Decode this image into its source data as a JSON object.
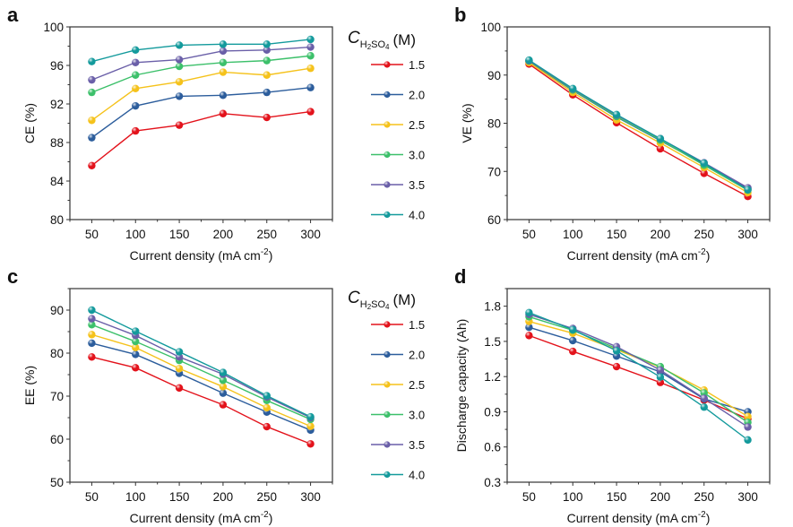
{
  "legend": {
    "title_main": "C",
    "title_sub": "H2SO4",
    "title_unit": "(M)",
    "entries": [
      {
        "label": "1.5",
        "color": "#e3121b"
      },
      {
        "label": "2.0",
        "color": "#2c5d9c"
      },
      {
        "label": "2.5",
        "color": "#f5c21b"
      },
      {
        "label": "3.0",
        "color": "#3cc06a"
      },
      {
        "label": "3.5",
        "color": "#6a5fa8"
      },
      {
        "label": "4.0",
        "color": "#139a9c"
      }
    ]
  },
  "chart_data": [
    {
      "panel": "a",
      "type": "line",
      "xlabel": "Current density (mA cm-2)",
      "xlabel_main": "Current density (mA cm",
      "xlabel_sup": "-2",
      "xlabel_end": ")",
      "ylabel": "CE (%)",
      "x": [
        50,
        100,
        150,
        200,
        250,
        300
      ],
      "xlim": [
        25,
        325
      ],
      "ylim": [
        80,
        100
      ],
      "yticks": [
        80,
        84,
        88,
        92,
        96,
        100
      ],
      "xticks": [
        50,
        100,
        150,
        200,
        250,
        300
      ],
      "series": [
        {
          "name": "1.5",
          "values": [
            85.6,
            89.2,
            89.8,
            91.0,
            90.6,
            91.2
          ]
        },
        {
          "name": "2.0",
          "values": [
            88.5,
            91.8,
            92.8,
            92.9,
            93.2,
            93.7
          ]
        },
        {
          "name": "2.5",
          "values": [
            90.3,
            93.6,
            94.3,
            95.3,
            95.0,
            95.7
          ]
        },
        {
          "name": "3.0",
          "values": [
            93.2,
            95.0,
            95.9,
            96.3,
            96.5,
            97.0
          ]
        },
        {
          "name": "3.5",
          "values": [
            94.5,
            96.3,
            96.6,
            97.5,
            97.6,
            97.9
          ]
        },
        {
          "name": "4.0",
          "values": [
            96.4,
            97.6,
            98.1,
            98.2,
            98.2,
            98.7
          ]
        }
      ]
    },
    {
      "panel": "b",
      "type": "line",
      "xlabel": "Current density (mA cm-2)",
      "xlabel_main": "Current density (mA cm",
      "xlabel_sup": "-2",
      "xlabel_end": ")",
      "ylabel": "VE (%)",
      "x": [
        50,
        100,
        150,
        200,
        250,
        300
      ],
      "xlim": [
        25,
        325
      ],
      "ylim": [
        60,
        100
      ],
      "yticks": [
        60,
        70,
        80,
        90,
        100
      ],
      "xticks": [
        50,
        100,
        150,
        200,
        250,
        300
      ],
      "series": [
        {
          "name": "1.5",
          "values": [
            92.3,
            85.9,
            80.1,
            74.7,
            69.6,
            64.8
          ]
        },
        {
          "name": "2.0",
          "values": [
            92.8,
            86.8,
            81.3,
            76.4,
            71.5,
            66.4
          ]
        },
        {
          "name": "2.5",
          "values": [
            92.6,
            86.4,
            80.7,
            75.9,
            70.8,
            65.6
          ]
        },
        {
          "name": "3.0",
          "values": [
            92.9,
            86.9,
            81.4,
            76.5,
            71.3,
            66.1
          ]
        },
        {
          "name": "3.5",
          "values": [
            93.0,
            87.1,
            81.7,
            76.8,
            71.8,
            66.6
          ]
        },
        {
          "name": "4.0",
          "values": [
            93.1,
            87.2,
            81.8,
            76.8,
            71.7,
            66.2
          ]
        }
      ]
    },
    {
      "panel": "c",
      "type": "line",
      "xlabel": "Current density (mA cm-2)",
      "xlabel_main": "Current density (mA cm",
      "xlabel_sup": "-2",
      "xlabel_end": ")",
      "ylabel": "EE (%)",
      "x": [
        50,
        100,
        150,
        200,
        250,
        300
      ],
      "xlim": [
        25,
        325
      ],
      "ylim": [
        50,
        95
      ],
      "yticks": [
        50,
        60,
        70,
        80,
        90
      ],
      "xticks": [
        50,
        100,
        150,
        200,
        250,
        300
      ],
      "series": [
        {
          "name": "1.5",
          "values": [
            79.1,
            76.6,
            71.9,
            68.0,
            62.9,
            58.9
          ]
        },
        {
          "name": "2.0",
          "values": [
            82.3,
            79.7,
            75.3,
            70.7,
            66.3,
            62.1
          ]
        },
        {
          "name": "2.5",
          "values": [
            84.3,
            81.3,
            76.4,
            72.2,
            67.3,
            63.0
          ]
        },
        {
          "name": "3.0",
          "values": [
            86.6,
            82.7,
            78.3,
            73.7,
            69.0,
            64.6
          ]
        },
        {
          "name": "3.5",
          "values": [
            88.0,
            84.1,
            79.1,
            75.1,
            69.8,
            65.0
          ]
        },
        {
          "name": "4.0",
          "values": [
            90.0,
            85.1,
            80.3,
            75.5,
            70.1,
            65.2
          ]
        }
      ]
    },
    {
      "panel": "d",
      "type": "line",
      "xlabel": "Current density (mA cm-2)",
      "xlabel_main": "Current density (mA cm",
      "xlabel_sup": "-2",
      "xlabel_end": ")",
      "ylabel": "Discharge capacity (Ah)",
      "x": [
        50,
        100,
        150,
        200,
        250,
        300
      ],
      "xlim": [
        25,
        325
      ],
      "ylim": [
        0.3,
        1.95
      ],
      "yticks": [
        0.3,
        0.6,
        0.9,
        1.2,
        1.5,
        1.8
      ],
      "xticks": [
        50,
        100,
        150,
        200,
        250,
        300
      ],
      "series": [
        {
          "name": "1.5",
          "values": [
            1.55,
            1.415,
            1.285,
            1.15,
            1.0,
            0.84
          ]
        },
        {
          "name": "2.0",
          "values": [
            1.62,
            1.507,
            1.375,
            1.24,
            1.01,
            0.9
          ]
        },
        {
          "name": "2.5",
          "values": [
            1.67,
            1.57,
            1.43,
            1.28,
            1.085,
            0.86
          ]
        },
        {
          "name": "3.0",
          "values": [
            1.71,
            1.595,
            1.44,
            1.285,
            1.06,
            0.81
          ]
        },
        {
          "name": "3.5",
          "values": [
            1.73,
            1.61,
            1.455,
            1.255,
            1.015,
            0.77
          ]
        },
        {
          "name": "4.0",
          "values": [
            1.745,
            1.6,
            1.42,
            1.196,
            0.94,
            0.66
          ]
        }
      ]
    }
  ]
}
